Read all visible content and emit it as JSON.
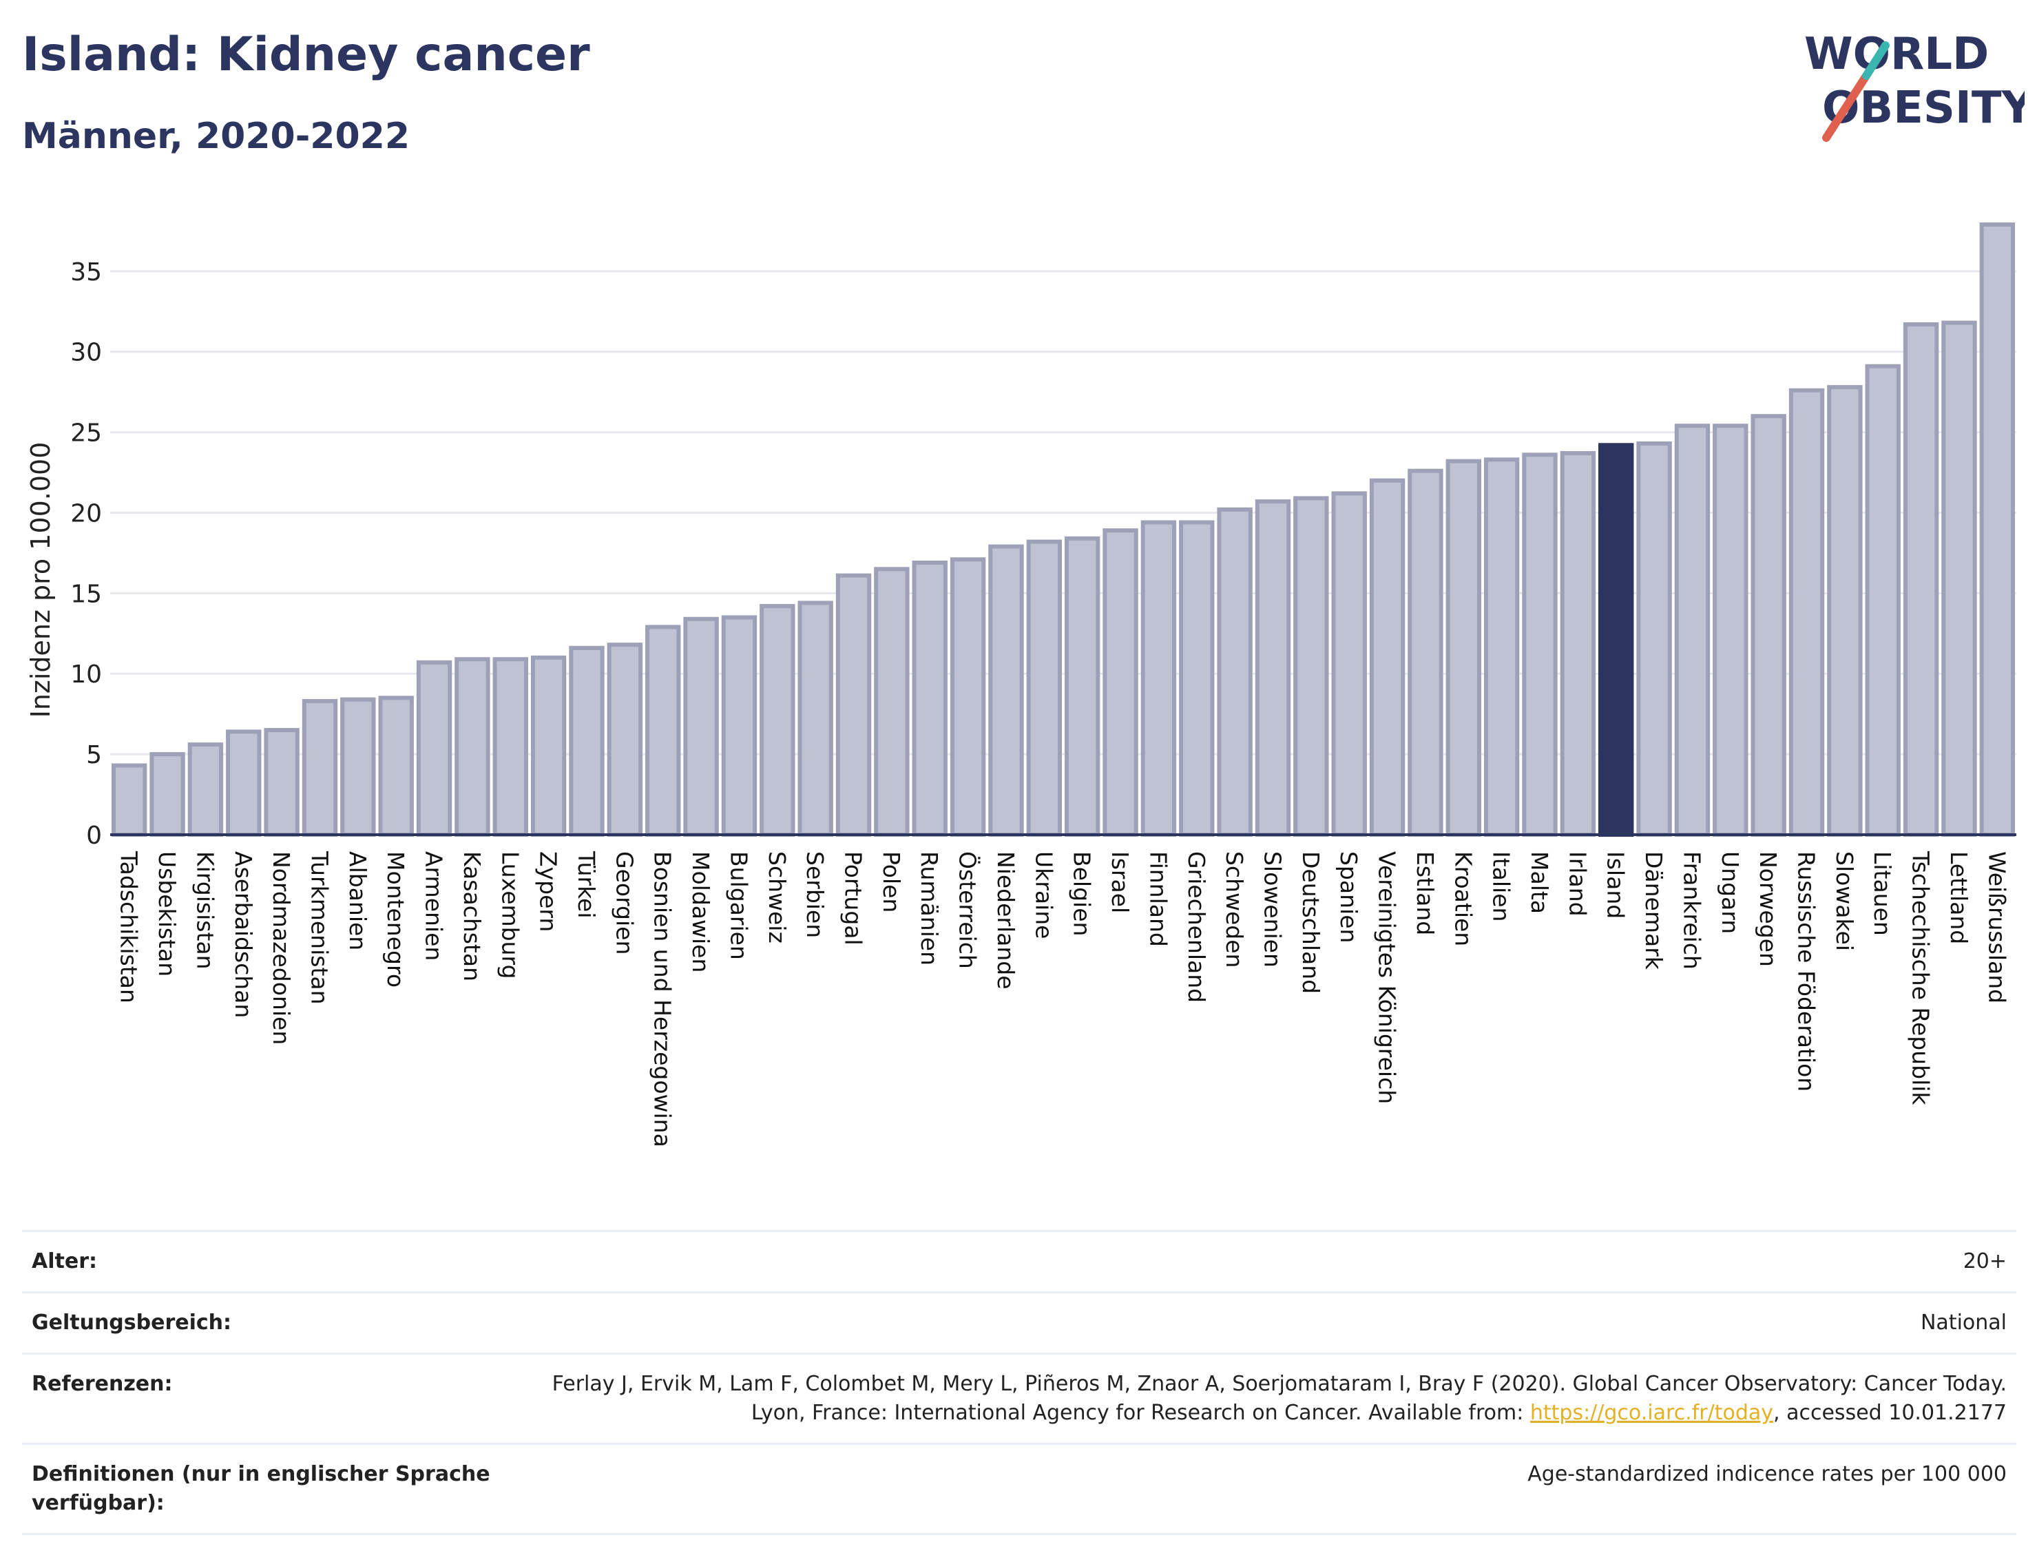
{
  "header": {
    "title": "Island: Kidney cancer",
    "subtitle": "Männer, 2020-2022"
  },
  "logo": {
    "line1": "WORLD",
    "line2": "OBESITY",
    "colors": {
      "text": "#2b3560",
      "slash_red": "#e0604f",
      "slash_teal": "#3ab5b0"
    }
  },
  "chart_data": {
    "type": "bar",
    "ylabel": "Inzidenz pro 100.000",
    "ylim": [
      0,
      38.5
    ],
    "yticks": [
      0,
      5,
      10,
      15,
      20,
      25,
      30,
      35
    ],
    "grid": true,
    "highlight": "Island",
    "colors": {
      "bar": "#bfc2d2",
      "bar_edge": "#9da1b8",
      "highlight": "#2b3560",
      "axis": "#2b3560",
      "grid": "#e6e8ee"
    },
    "categories": [
      "Tadschikistan",
      "Usbekistan",
      "Kirgisistan",
      "Aserbaidschan",
      "Nordmazedonien",
      "Turkmenistan",
      "Albanien",
      "Montenegro",
      "Armenien",
      "Kasachstan",
      "Luxemburg",
      "Zypern",
      "Türkei",
      "Georgien",
      "Bosnien und Herzegowina",
      "Moldawien",
      "Bulgarien",
      "Schweiz",
      "Serbien",
      "Portugal",
      "Polen",
      "Rumänien",
      "Österreich",
      "Niederlande",
      "Ukraine",
      "Belgien",
      "Israel",
      "Finnland",
      "Griechenland",
      "Schweden",
      "Slowenien",
      "Deutschland",
      "Spanien",
      "Vereinigtes Königreich",
      "Estland",
      "Kroatien",
      "Italien",
      "Malta",
      "Irland",
      "Island",
      "Dänemark",
      "Frankreich",
      "Ungarn",
      "Norwegen",
      "Russische Föderation",
      "Slowakei",
      "Litauen",
      "Tschechische Republik",
      "Lettland",
      "Weißrussland"
    ],
    "values": [
      4.3,
      5.0,
      5.6,
      6.4,
      6.5,
      8.3,
      8.4,
      8.5,
      10.7,
      10.9,
      10.9,
      11.0,
      11.6,
      11.8,
      12.9,
      13.4,
      13.5,
      14.2,
      14.4,
      16.1,
      16.5,
      16.9,
      17.1,
      17.9,
      18.2,
      18.4,
      18.9,
      19.4,
      19.4,
      20.2,
      20.7,
      20.9,
      21.2,
      22.0,
      22.6,
      23.2,
      23.3,
      23.6,
      23.7,
      24.2,
      24.3,
      25.4,
      25.4,
      26.0,
      27.6,
      27.8,
      29.1,
      31.7,
      31.8,
      37.9
    ]
  },
  "meta": {
    "age_label": "Alter:",
    "age_value": "20+",
    "scope_label": "Geltungsbereich:",
    "scope_value": "National",
    "ref_label": "Referenzen:",
    "ref_text_1": "Ferlay J, Ervik M, Lam F, Colombet M, Mery L, Piñeros M, Znaor A, Soerjomataram I, Bray F (2020). Global Cancer Observatory: Cancer Today. Lyon, France: International Agency for Research on Cancer. Available from: ",
    "ref_link": "https://gco.iarc.fr/today",
    "ref_text_2": ", accessed 10.01.2177",
    "def_label": "Definitionen (nur in englischer Sprache verfügbar):",
    "def_value": "Age-standardized indicence rates per 100 000"
  }
}
